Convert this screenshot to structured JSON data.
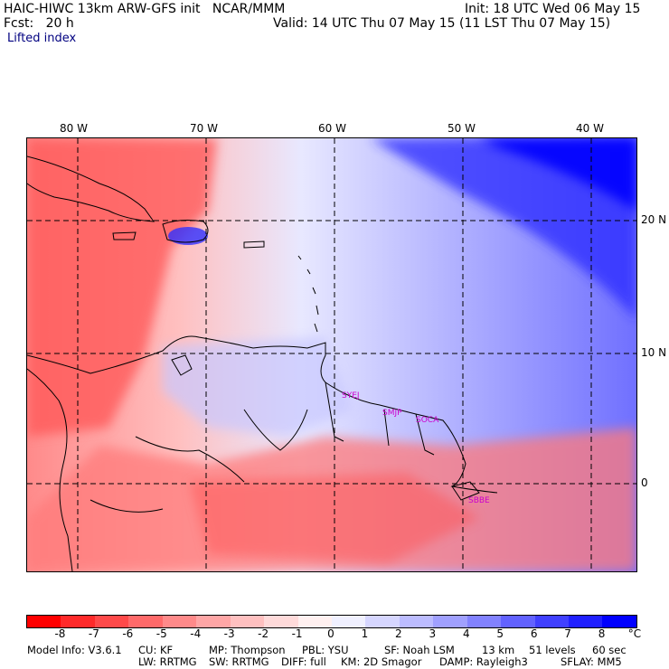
{
  "header": {
    "title_left": "HAIC-HIWC 13km ARW-GFS init   NCAR/MMM",
    "init": "Init: 18 UTC Wed 06 May 15",
    "fcst": "Fcst:   20 h",
    "valid": "Valid: 14 UTC Thu 07 May 15 (11 LST Thu 07 May 15)",
    "field": "Lifted index"
  },
  "map": {
    "lon_labels": [
      "80 W",
      "70 W",
      "60 W",
      "50 W",
      "40 W"
    ],
    "lat_labels": [
      "20 N",
      "10 N",
      "0"
    ],
    "stations": [
      "SYEJ",
      "SMJP",
      "SOCA",
      "SBBE"
    ]
  },
  "colorbar": {
    "labels": [
      "-8",
      "-7",
      "-6",
      "-5",
      "-4",
      "-3",
      "-2",
      "-1",
      "0",
      "1",
      "2",
      "3",
      "4",
      "5",
      "6",
      "7",
      "8"
    ],
    "unit": "°C",
    "colors": [
      "#ff0000",
      "#ff2a2a",
      "#ff4a4a",
      "#ff6a6a",
      "#ff8a8a",
      "#ffa6a6",
      "#ffc0c0",
      "#ffdada",
      "#fff0f0",
      "#f0f0ff",
      "#d6d6ff",
      "#bcbcff",
      "#a0a0ff",
      "#8282ff",
      "#6262ff",
      "#4040ff",
      "#2020ff",
      "#0000ff"
    ]
  },
  "footer": {
    "line1": [
      "Model Info: V3.6.1",
      "CU: KF",
      "MP: Thompson",
      "PBL: YSU",
      "SF: Noah LSM",
      "13 km",
      "51 levels",
      "60 sec"
    ],
    "line2": [
      "LW: RRTMG",
      "SW: RRTMG",
      "DIFF: full",
      "KM: 2D Smagor",
      "DAMP: Rayleigh3",
      "SFLAY: MM5"
    ]
  }
}
